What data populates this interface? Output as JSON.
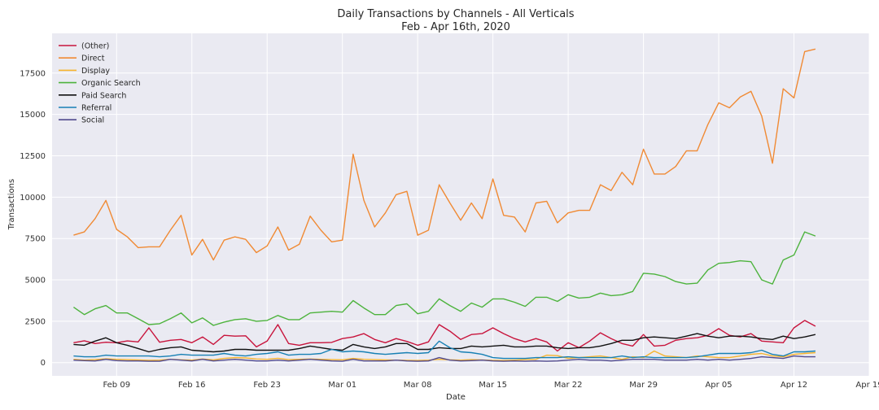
{
  "chart_data": {
    "type": "line",
    "title": "Daily Transactions by Channels - All Verticals",
    "subtitle": "Feb - Apr 16th, 2020",
    "xlabel": "Date",
    "ylabel": "Transactions",
    "x_ticks": [
      "Feb 09",
      "Feb 16",
      "Feb 23",
      "Mar 01",
      "Mar 08",
      "Mar 15",
      "Mar 22",
      "Mar 29",
      "Apr 05",
      "Apr 12",
      "Apr 19"
    ],
    "y_ticks": [
      "0",
      "2500",
      "5000",
      "7500",
      "10000",
      "12500",
      "15000",
      "17500"
    ],
    "xlim": [
      "2020-02-03",
      "2020-04-19"
    ],
    "ylim": [
      -800,
      19900
    ],
    "grid": true,
    "legend_position": "top-left",
    "x_start": "2020-02-05",
    "x_end": "2020-04-16",
    "series": [
      {
        "name": "(Other)",
        "color": "#c8143c",
        "values": [
          1200,
          1320,
          1150,
          1230,
          1200,
          1310,
          1250,
          2100,
          1230,
          1350,
          1400,
          1200,
          1550,
          1100,
          1650,
          1600,
          1620,
          950,
          1300,
          2300,
          1150,
          1050,
          1200,
          1200,
          1220,
          1450,
          1550,
          1750,
          1400,
          1200,
          1450,
          1280,
          1050,
          1250,
          2300,
          1900,
          1400,
          1700,
          1750,
          2100,
          1750,
          1450,
          1250,
          1450,
          1250,
          700,
          1200,
          900,
          1300,
          1800,
          1450,
          1150,
          1000,
          1700,
          1000,
          1050,
          1350,
          1450,
          1500,
          1650,
          2050,
          1650,
          1550,
          1750,
          1300,
          1250,
          1200,
          2100,
          2550,
          2200
        ]
      },
      {
        "name": "Direct",
        "color": "#f08a34",
        "values": [
          7700,
          7900,
          8700,
          9800,
          8050,
          7600,
          6950,
          7000,
          7000,
          8000,
          8900,
          6500,
          7450,
          6200,
          7400,
          7600,
          7450,
          6650,
          7050,
          8200,
          6800,
          7150,
          8850,
          8000,
          7300,
          7400,
          12600,
          9800,
          8200,
          9050,
          10150,
          10350,
          7700,
          8000,
          10750,
          9650,
          8600,
          9650,
          8700,
          11100,
          8900,
          8800,
          7900,
          9650,
          9750,
          8450,
          9050,
          9200,
          9200,
          10750,
          10400,
          11500,
          10750,
          12900,
          11400,
          11400,
          11850,
          12800,
          12800,
          14400,
          15700,
          15400,
          16050,
          16400,
          14900,
          12050,
          16550,
          16000,
          18800,
          18950
        ]
      },
      {
        "name": "Display",
        "color": "#f6b42e",
        "values": [
          200,
          150,
          180,
          230,
          200,
          180,
          160,
          140,
          150,
          200,
          170,
          150,
          220,
          160,
          250,
          300,
          280,
          220,
          200,
          260,
          180,
          200,
          220,
          200,
          180,
          170,
          250,
          200,
          180,
          160,
          150,
          140,
          130,
          150,
          200,
          170,
          150,
          180,
          160,
          140,
          130,
          150,
          180,
          200,
          450,
          420,
          250,
          300,
          350,
          400,
          300,
          200,
          350,
          300,
          700,
          400,
          350,
          300,
          400,
          350,
          300,
          300,
          400,
          500,
          550,
          400,
          350,
          500,
          550,
          600
        ]
      },
      {
        "name": "Organic Search",
        "color": "#4db33d",
        "values": [
          3350,
          2900,
          3250,
          3450,
          3000,
          3000,
          2650,
          2300,
          2350,
          2650,
          3000,
          2400,
          2700,
          2250,
          2450,
          2600,
          2650,
          2500,
          2550,
          2850,
          2600,
          2600,
          3000,
          3050,
          3100,
          3050,
          3750,
          3300,
          2900,
          2900,
          3450,
          3550,
          2950,
          3100,
          3850,
          3450,
          3100,
          3600,
          3350,
          3850,
          3850,
          3650,
          3400,
          3950,
          3950,
          3700,
          4100,
          3900,
          3950,
          4200,
          4050,
          4100,
          4300,
          5400,
          5350,
          5200,
          4900,
          4750,
          4800,
          5600,
          6000,
          6050,
          6150,
          6100,
          5000,
          4750,
          6200,
          6500,
          7900,
          7650
        ]
      },
      {
        "name": "Paid Search",
        "color": "#111111",
        "values": [
          1100,
          1050,
          1300,
          1500,
          1200,
          1050,
          850,
          650,
          800,
          900,
          950,
          750,
          700,
          650,
          700,
          800,
          800,
          750,
          750,
          750,
          750,
          850,
          1000,
          900,
          800,
          750,
          1100,
          950,
          850,
          950,
          1150,
          1150,
          800,
          800,
          900,
          850,
          850,
          1000,
          950,
          1000,
          1050,
          950,
          950,
          1000,
          1000,
          900,
          850,
          900,
          900,
          1000,
          1150,
          1350,
          1350,
          1500,
          1550,
          1500,
          1450,
          1600,
          1750,
          1600,
          1500,
          1600,
          1600,
          1550,
          1450,
          1400,
          1600,
          1450,
          1550,
          1700
        ]
      },
      {
        "name": "Referral",
        "color": "#1780b4",
        "values": [
          400,
          350,
          350,
          450,
          400,
          400,
          400,
          400,
          350,
          400,
          500,
          450,
          450,
          450,
          550,
          450,
          400,
          500,
          550,
          650,
          450,
          500,
          500,
          550,
          800,
          650,
          700,
          650,
          550,
          500,
          550,
          600,
          550,
          600,
          1300,
          900,
          650,
          600,
          500,
          300,
          250,
          250,
          250,
          300,
          300,
          300,
          350,
          300,
          300,
          300,
          300,
          400,
          300,
          350,
          300,
          300,
          300,
          300,
          350,
          450,
          550,
          550,
          550,
          600,
          750,
          500,
          400,
          650,
          650,
          700
        ]
      },
      {
        "name": "Social",
        "color": "#514a8e",
        "values": [
          150,
          120,
          100,
          200,
          120,
          100,
          100,
          80,
          80,
          200,
          150,
          100,
          200,
          100,
          150,
          200,
          150,
          100,
          100,
          150,
          100,
          150,
          200,
          150,
          100,
          80,
          200,
          100,
          100,
          100,
          150,
          100,
          80,
          100,
          300,
          150,
          100,
          120,
          150,
          100,
          80,
          100,
          80,
          100,
          80,
          100,
          150,
          200,
          150,
          150,
          100,
          150,
          200,
          200,
          200,
          150,
          150,
          150,
          200,
          150,
          200,
          150,
          200,
          250,
          350,
          300,
          250,
          400,
          350,
          350
        ]
      }
    ]
  }
}
